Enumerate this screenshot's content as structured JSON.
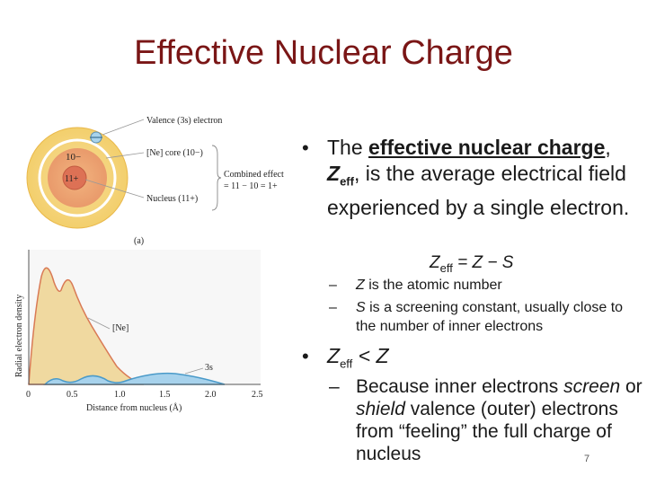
{
  "title": "Effective Nuclear Charge",
  "figure": {
    "atom": {
      "core_charge": "10−",
      "nucleus_charge": "11+",
      "label_valence": "Valence (3s) electron",
      "label_core": "[Ne] core (10−)",
      "label_nucleus": "Nucleus (11+)",
      "label_combined_1": "Combined effect",
      "label_combined_2": "= 11 − 10 = 1+",
      "panel_label": "(a)"
    },
    "plot": {
      "ylabel": "Radial electron density",
      "xlabel": "Distance from nucleus (Å)",
      "xticks": [
        "0",
        "0.5",
        "1.0",
        "1.5",
        "2.0",
        "2.5"
      ],
      "label_core": "[Ne]",
      "label_valence": "3s"
    }
  },
  "bullets": {
    "b1_before": "The ",
    "b1_term": "effective nuclear charge",
    "b1_comma": ",",
    "b1_symbol": "Z",
    "b1_sub": "eff",
    "b1_rest": ", is the average electrical field experienced by a single electron.",
    "formula_z": "Z",
    "formula_sub": "eff",
    "formula_rest": " = Z − S",
    "sub1_var": "Z",
    "sub1_text": " is the atomic number",
    "sub2_var": "S",
    "sub2_text": " is a screening constant, usually close to the number of inner electrons",
    "b2_z": "Z",
    "b2_sub": "eff",
    "b2_rest": " < Z",
    "sub3_before": "Because inner electrons ",
    "sub3_screen": "screen",
    "sub3_mid1": " or ",
    "sub3_shield": "shield",
    "sub3_after": " valence (outer) electrons from “feeling” the full charge of nucleus"
  },
  "bullet_char": "•",
  "dash_char": "–",
  "page_number": "7"
}
